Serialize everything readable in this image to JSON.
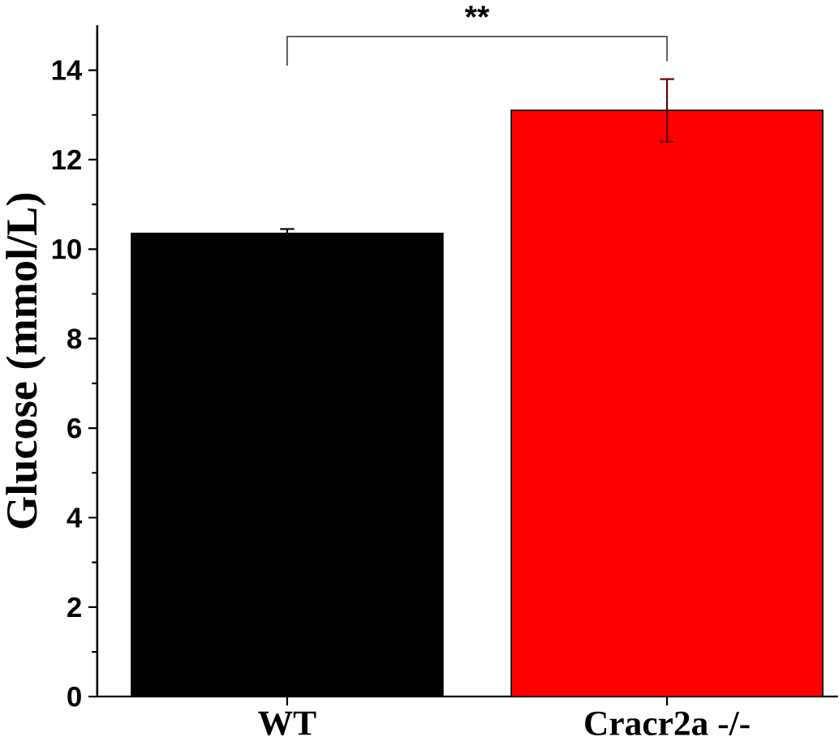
{
  "chart_data": {
    "type": "bar",
    "ylabel": "Glucose (mmol/L)",
    "categories": [
      "WT",
      "Cracr2a -/-"
    ],
    "values": [
      10.35,
      13.1
    ],
    "errors": [
      0.1,
      0.7
    ],
    "colors": [
      "#000000",
      "#ff0000"
    ],
    "ylim": [
      0,
      15
    ],
    "yticks": [
      0,
      2,
      4,
      6,
      8,
      10,
      12,
      14
    ],
    "annotations": [
      "**"
    ],
    "grid": false
  }
}
